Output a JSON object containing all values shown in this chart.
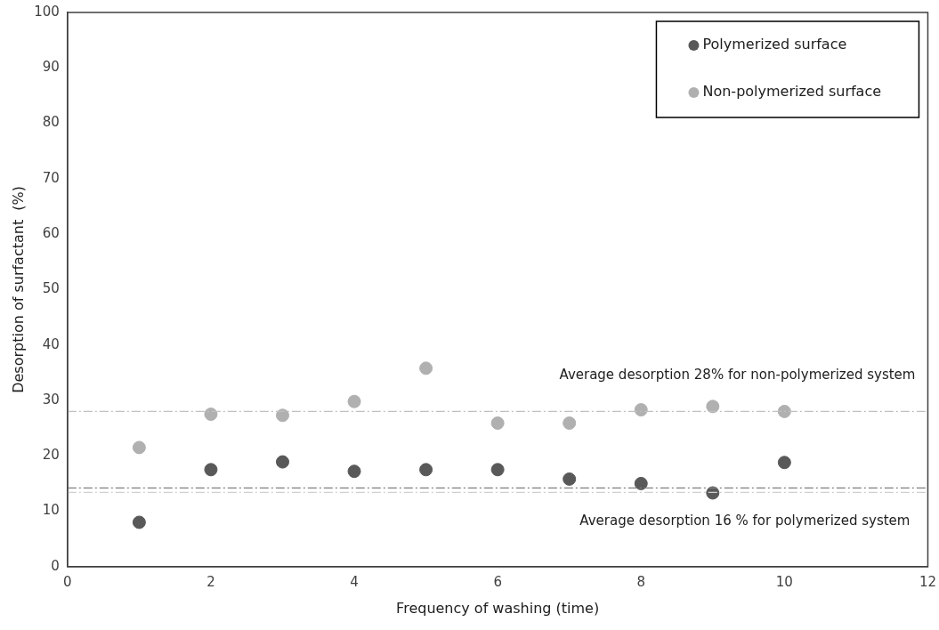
{
  "chart_data": {
    "type": "scatter",
    "xlabel": "Frequency of washing (time)",
    "ylabel": "Desorption of surfactant  (%)",
    "x": [
      1,
      2,
      3,
      4,
      5,
      6,
      7,
      8,
      9,
      10
    ],
    "series": [
      {
        "name": "Polymerized surface",
        "color": "#595959",
        "values": [
          8,
          17.5,
          18.9,
          17.2,
          17.5,
          17.5,
          15.8,
          15.0,
          13.3,
          18.8
        ]
      },
      {
        "name": "Non-polymerized surface",
        "color": "#b0b0b0",
        "values": [
          21.5,
          27.5,
          27.3,
          29.8,
          35.8,
          25.9,
          25.9,
          28.3,
          28.9,
          28.0
        ]
      }
    ],
    "xlim": [
      0,
      12
    ],
    "xticks": [
      0,
      2,
      4,
      6,
      8,
      10,
      12
    ],
    "ylim": [
      0,
      100
    ],
    "yticks": [
      0,
      10,
      20,
      30,
      40,
      50,
      60,
      70,
      80,
      90,
      100
    ],
    "ref_lines": [
      {
        "axis": "y",
        "value": 28,
        "color": "#c0c0c0",
        "line_style": "dashed",
        "label": "Average desorption 28% for non-polymerized system"
      },
      {
        "axis": "y",
        "value": 14.2,
        "color": "#7f7f7f",
        "line_style": "dashed",
        "label": "Average desorption 16 % for polymerized system"
      },
      {
        "axis": "y",
        "value": 13.4,
        "color": "#d0d0d0",
        "line_style": "dashed"
      }
    ],
    "legend": "top right",
    "grid": false,
    "marker": "circle"
  }
}
